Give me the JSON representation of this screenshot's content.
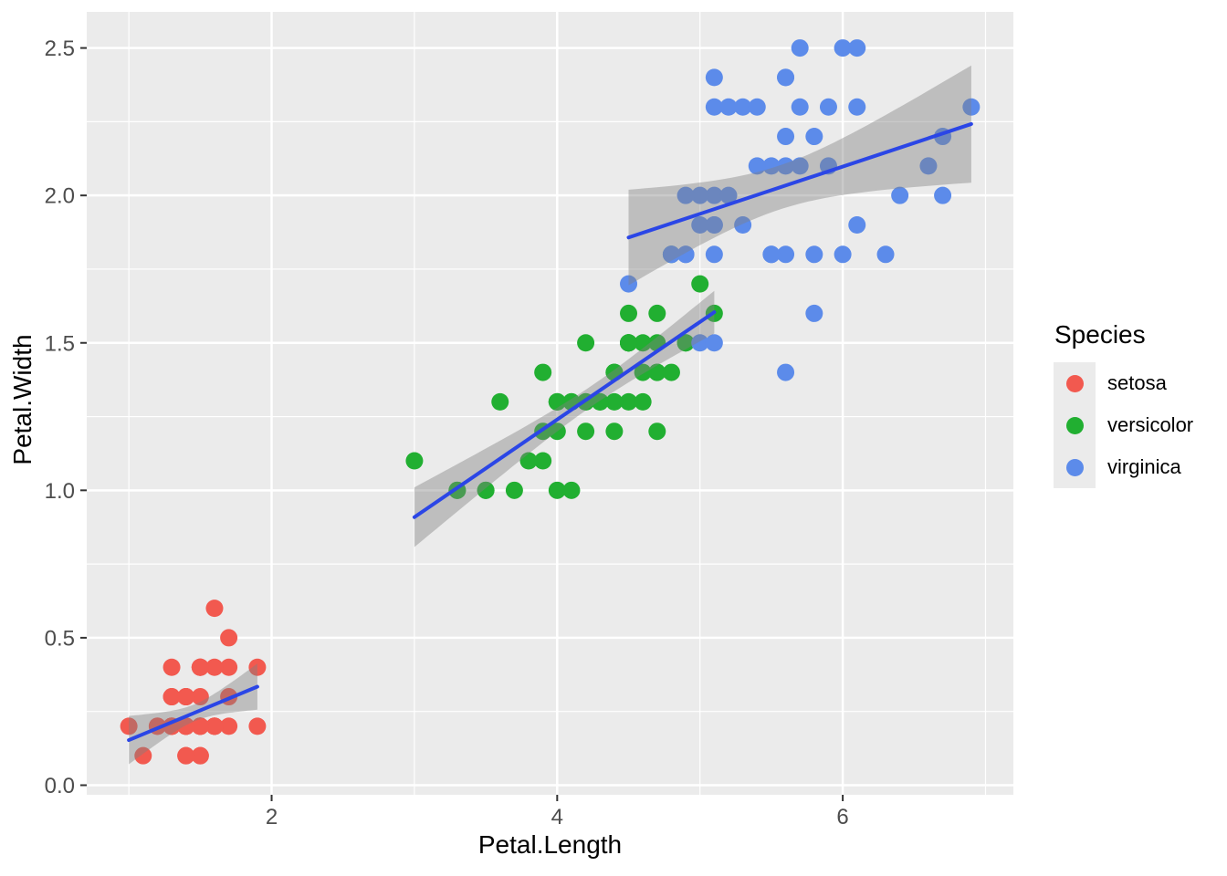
{
  "chart_data": {
    "type": "scatter",
    "title": "",
    "xlabel": "Petal.Length",
    "ylabel": "Petal.Width",
    "xlim": [
      0.705,
      7.195
    ],
    "ylim": [
      -0.0325,
      2.6225
    ],
    "x_ticks": {
      "values": [
        2,
        4,
        6
      ],
      "labels": [
        "2",
        "4",
        "6"
      ]
    },
    "y_ticks": {
      "values": [
        0,
        0.5,
        1.0,
        1.5,
        2.0,
        2.5
      ],
      "labels": [
        "0.0",
        "0.5",
        "1.0",
        "1.5",
        "2.0",
        "2.5"
      ]
    },
    "x_minor": [
      1,
      3,
      5,
      7
    ],
    "y_minor": [
      0.25,
      0.75,
      1.25,
      1.75,
      2.25
    ],
    "grid": true,
    "legend": {
      "title": "Species",
      "position": "right"
    },
    "smoother": {
      "method": "lm",
      "level": 0.95,
      "line_color": "#2B46E6",
      "ribbon_color": "rgba(128,128,128,0.42)"
    },
    "series": [
      {
        "name": "setosa",
        "color": "#F2594F",
        "points": [
          [
            1.4,
            0.2
          ],
          [
            1.4,
            0.2
          ],
          [
            1.3,
            0.2
          ],
          [
            1.5,
            0.2
          ],
          [
            1.4,
            0.2
          ],
          [
            1.7,
            0.4
          ],
          [
            1.4,
            0.3
          ],
          [
            1.5,
            0.2
          ],
          [
            1.4,
            0.2
          ],
          [
            1.5,
            0.1
          ],
          [
            1.5,
            0.2
          ],
          [
            1.6,
            0.2
          ],
          [
            1.4,
            0.1
          ],
          [
            1.1,
            0.1
          ],
          [
            1.2,
            0.2
          ],
          [
            1.5,
            0.4
          ],
          [
            1.3,
            0.4
          ],
          [
            1.4,
            0.3
          ],
          [
            1.7,
            0.3
          ],
          [
            1.5,
            0.3
          ],
          [
            1.7,
            0.2
          ],
          [
            1.5,
            0.4
          ],
          [
            1.0,
            0.2
          ],
          [
            1.7,
            0.5
          ],
          [
            1.9,
            0.2
          ],
          [
            1.6,
            0.2
          ],
          [
            1.6,
            0.4
          ],
          [
            1.5,
            0.2
          ],
          [
            1.4,
            0.2
          ],
          [
            1.6,
            0.2
          ],
          [
            1.6,
            0.2
          ],
          [
            1.5,
            0.4
          ],
          [
            1.5,
            0.1
          ],
          [
            1.4,
            0.2
          ],
          [
            1.5,
            0.2
          ],
          [
            1.2,
            0.2
          ],
          [
            1.3,
            0.2
          ],
          [
            1.4,
            0.1
          ],
          [
            1.3,
            0.2
          ],
          [
            1.5,
            0.2
          ],
          [
            1.3,
            0.3
          ],
          [
            1.3,
            0.3
          ],
          [
            1.3,
            0.2
          ],
          [
            1.6,
            0.6
          ],
          [
            1.9,
            0.4
          ],
          [
            1.4,
            0.3
          ],
          [
            1.6,
            0.2
          ],
          [
            1.4,
            0.2
          ],
          [
            1.5,
            0.2
          ],
          [
            1.4,
            0.2
          ]
        ]
      },
      {
        "name": "versicolor",
        "color": "#21AF31",
        "points": [
          [
            4.7,
            1.4
          ],
          [
            4.5,
            1.5
          ],
          [
            4.9,
            1.5
          ],
          [
            4.0,
            1.3
          ],
          [
            4.6,
            1.5
          ],
          [
            4.5,
            1.3
          ],
          [
            4.7,
            1.6
          ],
          [
            3.3,
            1.0
          ],
          [
            4.6,
            1.3
          ],
          [
            3.9,
            1.4
          ],
          [
            3.5,
            1.0
          ],
          [
            4.2,
            1.5
          ],
          [
            4.0,
            1.0
          ],
          [
            4.7,
            1.4
          ],
          [
            3.6,
            1.3
          ],
          [
            4.4,
            1.4
          ],
          [
            4.5,
            1.5
          ],
          [
            4.1,
            1.0
          ],
          [
            4.5,
            1.5
          ],
          [
            3.9,
            1.1
          ],
          [
            4.8,
            1.8
          ],
          [
            4.0,
            1.3
          ],
          [
            4.9,
            1.5
          ],
          [
            4.7,
            1.2
          ],
          [
            4.3,
            1.3
          ],
          [
            4.4,
            1.4
          ],
          [
            4.8,
            1.4
          ],
          [
            5.0,
            1.7
          ],
          [
            4.5,
            1.5
          ],
          [
            3.5,
            1.0
          ],
          [
            3.8,
            1.1
          ],
          [
            3.7,
            1.0
          ],
          [
            3.9,
            1.2
          ],
          [
            5.1,
            1.6
          ],
          [
            4.5,
            1.5
          ],
          [
            4.5,
            1.6
          ],
          [
            4.7,
            1.5
          ],
          [
            4.4,
            1.3
          ],
          [
            4.1,
            1.3
          ],
          [
            4.0,
            1.3
          ],
          [
            4.4,
            1.2
          ],
          [
            4.6,
            1.4
          ],
          [
            4.0,
            1.2
          ],
          [
            3.3,
            1.0
          ],
          [
            4.2,
            1.3
          ],
          [
            4.2,
            1.2
          ],
          [
            4.2,
            1.3
          ],
          [
            4.3,
            1.3
          ],
          [
            3.0,
            1.1
          ],
          [
            4.1,
            1.3
          ]
        ]
      },
      {
        "name": "virginica",
        "color": "#5C8BEA",
        "points": [
          [
            6.0,
            2.5
          ],
          [
            5.1,
            1.9
          ],
          [
            5.9,
            2.1
          ],
          [
            5.6,
            1.8
          ],
          [
            5.8,
            2.2
          ],
          [
            6.6,
            2.1
          ],
          [
            4.5,
            1.7
          ],
          [
            6.3,
            1.8
          ],
          [
            5.8,
            1.8
          ],
          [
            6.1,
            2.5
          ],
          [
            5.1,
            2.0
          ],
          [
            5.3,
            1.9
          ],
          [
            5.5,
            2.1
          ],
          [
            5.0,
            2.0
          ],
          [
            5.1,
            2.4
          ],
          [
            5.3,
            2.3
          ],
          [
            5.5,
            1.8
          ],
          [
            6.7,
            2.2
          ],
          [
            6.9,
            2.3
          ],
          [
            5.0,
            1.5
          ],
          [
            5.7,
            2.3
          ],
          [
            4.9,
            2.0
          ],
          [
            6.7,
            2.0
          ],
          [
            4.9,
            1.8
          ],
          [
            5.7,
            2.1
          ],
          [
            6.0,
            1.8
          ],
          [
            4.8,
            1.8
          ],
          [
            4.9,
            1.8
          ],
          [
            5.6,
            2.1
          ],
          [
            5.8,
            1.6
          ],
          [
            6.1,
            1.9
          ],
          [
            6.4,
            2.0
          ],
          [
            5.6,
            2.2
          ],
          [
            5.1,
            1.5
          ],
          [
            5.6,
            1.4
          ],
          [
            6.1,
            2.3
          ],
          [
            5.6,
            2.4
          ],
          [
            5.5,
            1.8
          ],
          [
            4.8,
            1.8
          ],
          [
            5.4,
            2.1
          ],
          [
            5.6,
            2.4
          ],
          [
            5.1,
            2.3
          ],
          [
            5.1,
            1.9
          ],
          [
            5.9,
            2.3
          ],
          [
            5.7,
            2.5
          ],
          [
            5.2,
            2.3
          ],
          [
            5.0,
            1.9
          ],
          [
            5.2,
            2.0
          ],
          [
            5.4,
            2.3
          ],
          [
            5.1,
            1.8
          ]
        ]
      }
    ]
  },
  "theme": {
    "panel_background": "#EBEBEB",
    "gridline_color": "#FFFFFF",
    "tick_mark_color": "#333333",
    "tick_label_color": "#4D4D4D",
    "axis_title_color": "#000000",
    "legend_key_background": "#EBEBEB",
    "point_radius": 9.5
  }
}
